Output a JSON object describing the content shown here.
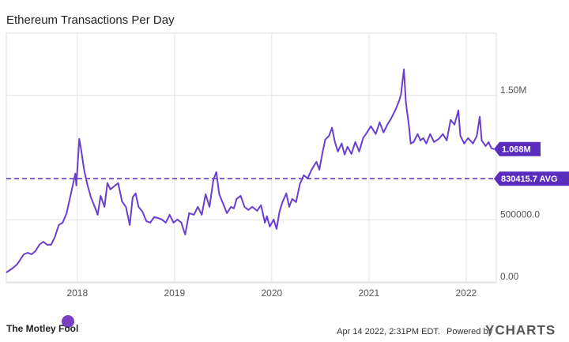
{
  "chart_data": {
    "type": "line",
    "title": "Ethereum Transactions Per Day",
    "x": [
      2017.27,
      2017.33,
      2017.38,
      2017.45,
      2017.49,
      2017.53,
      2017.57,
      2017.61,
      2017.65,
      2017.69,
      2017.73,
      2017.77,
      2017.81,
      2017.85,
      2017.89,
      2017.93,
      2017.98,
      2017.99,
      2018.02,
      2018.04,
      2018.07,
      2018.1,
      2018.14,
      2018.18,
      2018.21,
      2018.24,
      2018.28,
      2018.31,
      2018.34,
      2018.38,
      2018.42,
      2018.46,
      2018.5,
      2018.54,
      2018.57,
      2018.6,
      2018.63,
      2018.67,
      2018.71,
      2018.75,
      2018.79,
      2018.83,
      2018.87,
      2018.91,
      2018.95,
      2018.99,
      2019.03,
      2019.07,
      2019.11,
      2019.15,
      2019.2,
      2019.24,
      2019.28,
      2019.32,
      2019.36,
      2019.4,
      2019.43,
      2019.46,
      2019.5,
      2019.54,
      2019.58,
      2019.61,
      2019.64,
      2019.68,
      2019.72,
      2019.76,
      2019.8,
      2019.85,
      2019.89,
      2019.93,
      2019.95,
      2019.98,
      2020.02,
      2020.05,
      2020.08,
      2020.11,
      2020.15,
      2020.18,
      2020.21,
      2020.25,
      2020.29,
      2020.33,
      2020.37,
      2020.41,
      2020.46,
      2020.49,
      2020.52,
      2020.55,
      2020.59,
      2020.62,
      2020.65,
      2020.68,
      2020.72,
      2020.75,
      2020.78,
      2020.82,
      2020.86,
      2020.9,
      2020.94,
      2020.98,
      2021.02,
      2021.07,
      2021.11,
      2021.15,
      2021.19,
      2021.23,
      2021.27,
      2021.31,
      2021.33,
      2021.36,
      2021.38,
      2021.41,
      2021.43,
      2021.46,
      2021.5,
      2021.53,
      2021.56,
      2021.59,
      2021.63,
      2021.67,
      2021.72,
      2021.76,
      2021.8,
      2021.84,
      2021.88,
      2021.92,
      2021.94,
      2021.98,
      2022.02,
      2022.07,
      2022.11,
      2022.14,
      2022.16,
      2022.2,
      2022.23,
      2022.26,
      2022.29
    ],
    "series": [
      {
        "name": "Ethereum Transactions Per Day",
        "color": "#6a3fcf",
        "values": [
          76000,
          108000,
          140000,
          222000,
          235000,
          222000,
          248000,
          299000,
          324000,
          299000,
          299000,
          362000,
          458000,
          477000,
          553000,
          693000,
          871000,
          776000,
          1151000,
          1062000,
          903000,
          795000,
          680000,
          604000,
          540000,
          693000,
          604000,
          795000,
          744000,
          769000,
          795000,
          648000,
          604000,
          458000,
          680000,
          712000,
          604000,
          566000,
          490000,
          477000,
          521000,
          515000,
          502000,
          477000,
          540000,
          477000,
          502000,
          477000,
          381000,
          553000,
          540000,
          604000,
          540000,
          706000,
          604000,
          820000,
          884000,
          706000,
          629000,
          553000,
          604000,
          591000,
          668000,
          693000,
          604000,
          579000,
          604000,
          572000,
          617000,
          477000,
          528000,
          445000,
          502000,
          426000,
          566000,
          642000,
          712000,
          604000,
          668000,
          642000,
          788000,
          858000,
          833000,
          903000,
          966000,
          903000,
          1030000,
          1144000,
          1176000,
          1240000,
          1125000,
          1049000,
          1113000,
          1024000,
          1087000,
          1030000,
          1125000,
          1049000,
          1157000,
          1202000,
          1252000,
          1189000,
          1284000,
          1202000,
          1265000,
          1316000,
          1380000,
          1456000,
          1507000,
          1710000,
          1443000,
          1265000,
          1113000,
          1125000,
          1189000,
          1138000,
          1157000,
          1113000,
          1189000,
          1125000,
          1151000,
          1189000,
          1138000,
          1303000,
          1265000,
          1380000,
          1176000,
          1113000,
          1157000,
          1113000,
          1176000,
          1329000,
          1138000,
          1093000,
          1125000,
          1074000,
          1068000
        ]
      }
    ],
    "end_label": "1.068M",
    "average": {
      "value": 830415.7,
      "label": "830415.7 AVG"
    },
    "xlim": [
      2017.27,
      2022.31
    ],
    "xticks": [
      2018,
      2019,
      2020,
      2021,
      2022
    ],
    "ylim": [
      0,
      2000000
    ],
    "yticks": [
      {
        "value": 0,
        "label": "0.00"
      },
      {
        "value": 500000,
        "label": "500000.0"
      },
      {
        "value": 1500000,
        "label": "1.50M"
      }
    ],
    "grid": true
  },
  "footer": {
    "brand": "The Motley Fool",
    "timestamp": "Apr 14 2022, 2:31PM EDT.",
    "powered_by": "Powered by",
    "provider": "YCHARTS"
  }
}
